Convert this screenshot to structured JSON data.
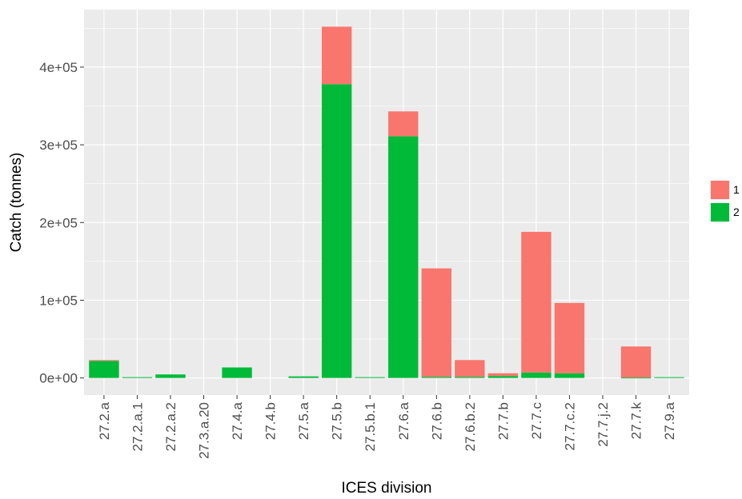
{
  "chart_data": {
    "type": "bar",
    "stacked": true,
    "title": "",
    "xlabel": "ICES division",
    "ylabel": "Catch (tonnes)",
    "ylim": [
      -22000,
      474000
    ],
    "y_ticks": [
      0,
      100000,
      200000,
      300000,
      400000
    ],
    "y_tick_labels": [
      "0e+00",
      "1e+05",
      "2e+05",
      "3e+05",
      "4e+05"
    ],
    "grid": true,
    "legend_position": "right",
    "categories": [
      "27.2.a",
      "27.2.a.1",
      "27.2.a.2",
      "27.3.a.20",
      "27.4.a",
      "27.4.b",
      "27.5.a",
      "27.5.b",
      "27.5.b.1",
      "27.6.a",
      "27.6.b",
      "27.6.b.2",
      "27.7.b",
      "27.7.c",
      "27.7.c.2",
      "27.7.j.2",
      "27.7.k",
      "27.9.a"
    ],
    "series": [
      {
        "name": "2",
        "color": "#00BA38",
        "values": [
          22000,
          1000,
          4500,
          0,
          13500,
          0,
          2000,
          378000,
          1000,
          311000,
          1500,
          1500,
          2500,
          7000,
          6000,
          0,
          500,
          1000
        ]
      },
      {
        "name": "1",
        "color": "#F8766D",
        "values": [
          1000,
          0,
          0,
          0,
          0,
          0,
          0,
          74000,
          0,
          32000,
          139500,
          21500,
          3500,
          181000,
          90500,
          0,
          40000,
          0
        ]
      }
    ]
  }
}
